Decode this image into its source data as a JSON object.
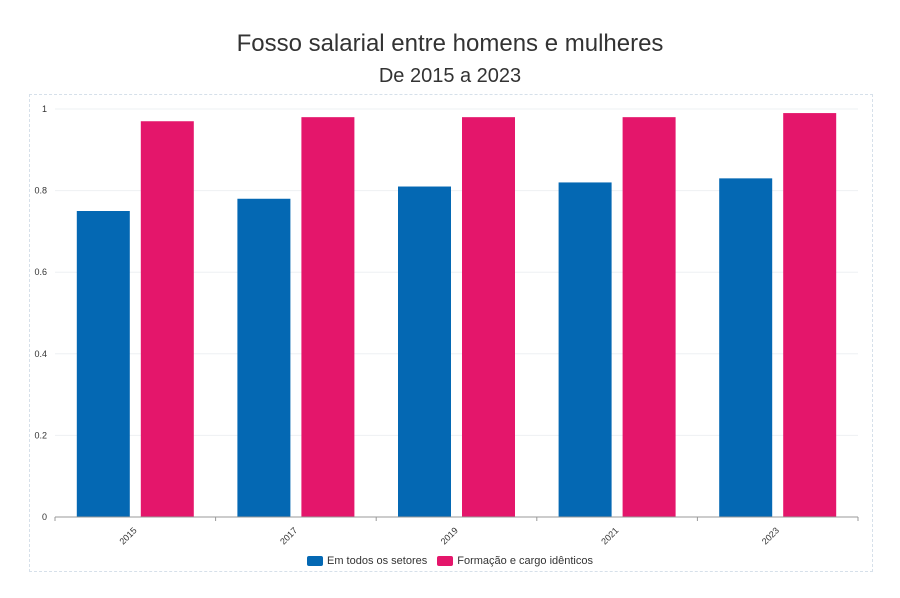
{
  "chart_data": {
    "type": "bar",
    "title": "Fosso salarial entre homens e mulheres",
    "subtitle": "De 2015 a 2023",
    "categories": [
      "2015",
      "2017",
      "2019",
      "2021",
      "2023"
    ],
    "series": [
      {
        "name": "Em todos os setores",
        "color": "#0468b3",
        "values": [
          0.75,
          0.78,
          0.81,
          0.82,
          0.83
        ]
      },
      {
        "name": "Formação e cargo idênticos",
        "color": "#e4166b",
        "values": [
          0.97,
          0.98,
          0.98,
          0.98,
          0.99
        ]
      }
    ],
    "yticks": [
      "0",
      "0.2",
      "0.4",
      "0.6",
      "0.8",
      "1"
    ],
    "ylim": [
      0,
      1
    ],
    "grid": true,
    "legend_position": "bottom"
  }
}
